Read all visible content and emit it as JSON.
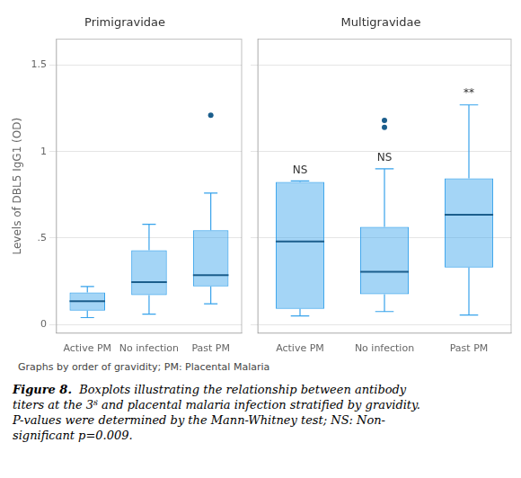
{
  "chart_data": [
    {
      "type": "boxplot",
      "title": "Primigravidae",
      "categories": [
        "Active PM",
        "No infection",
        "Past PM"
      ],
      "ylabel": "Levels of DBL5 IgG1 (OD)",
      "q1": [
        0.08,
        0.17,
        0.22
      ],
      "median": [
        0.135,
        0.245,
        0.285
      ],
      "q3": [
        0.185,
        0.43,
        0.545
      ],
      "whislo": [
        0.04,
        0.06,
        0.12
      ],
      "whishi": [
        0.22,
        0.58,
        0.76
      ],
      "fliers": [
        [],
        [],
        [
          1.21
        ]
      ],
      "ylim": [
        -0.05,
        1.65
      ],
      "yticks": [
        0,
        {
          "value": 0.5,
          "label": ".5"
        },
        1,
        1.5
      ],
      "grid": true
    },
    {
      "type": "boxplot",
      "title": "Multigravidae",
      "categories": [
        "Active PM",
        "No infection",
        "Past PM"
      ],
      "q1": [
        0.09,
        0.175,
        0.33
      ],
      "median": [
        0.48,
        0.305,
        0.635
      ],
      "q3": [
        0.825,
        0.565,
        0.845
      ],
      "whislo": [
        0.05,
        0.075,
        0.055
      ],
      "whishi": [
        0.83,
        0.9,
        1.27
      ],
      "fliers": [
        [],
        [
          1.14,
          1.18
        ],
        []
      ],
      "ylim": [
        -0.05,
        1.65
      ],
      "yticks": [
        0,
        {
          "value": 0.5,
          "label": ".5"
        },
        1,
        1.5
      ],
      "grid": true,
      "tick_labels": "x",
      "annotations": [
        {
          "text": "NS",
          "x": "Active PM",
          "y": 0.855
        },
        {
          "text": "NS",
          "x": "No infection",
          "y": 0.925
        },
        {
          "text": "**",
          "x": "Past PM",
          "y": 1.3
        }
      ]
    }
  ],
  "footnote": "Graphs by order of gravidity; PM: Placental Malaria",
  "caption_label": "Figure 8.",
  "caption": [
    "Boxplots illustrating the relationship between antibody",
    "titers at the 3ᴽ and placental malaria infection stratified by gravidity.",
    "P-values were determined by the Mann-Whitney test; NS: Non-",
    "significant p=0.009."
  ]
}
